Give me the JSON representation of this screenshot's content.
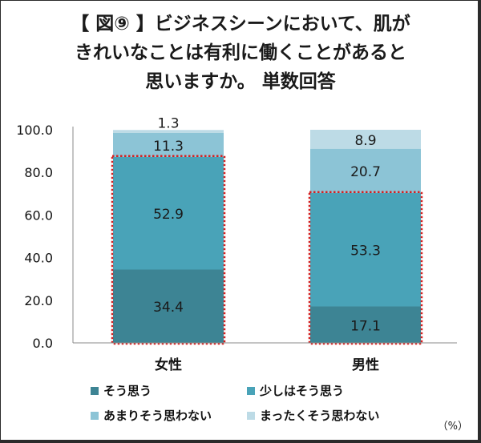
{
  "title_lines": [
    "【 図⑨ 】ビジネスシーンにおいて、肌が",
    "きれいなことは有利に働くことがあると",
    "思いますか。 単数回答"
  ],
  "unit_label": "（%）",
  "chart_data": {
    "type": "bar",
    "stacked": true,
    "categories": [
      "女性",
      "男性"
    ],
    "series": [
      {
        "name": "そう思う",
        "values": [
          34.4,
          17.1
        ],
        "color": "#3d8494"
      },
      {
        "name": "少しはそう思う",
        "values": [
          52.9,
          53.3
        ],
        "color": "#49a3b8"
      },
      {
        "name": "あまりそう思わない",
        "values": [
          11.3,
          20.7
        ],
        "color": "#8cc4d6"
      },
      {
        "name": "まったくそう思わない",
        "values": [
          1.3,
          8.9
        ],
        "color": "#bddbe6"
      }
    ],
    "ylim": [
      0,
      100
    ],
    "yticks": [
      "0.0",
      "20.0",
      "40.0",
      "60.0",
      "80.0",
      "100.0"
    ],
    "grid": false,
    "legend_position": "bottom",
    "highlight": {
      "color": "#d42020",
      "style": "dotted",
      "series": [
        "そう思う",
        "少しはそう思う"
      ]
    }
  }
}
